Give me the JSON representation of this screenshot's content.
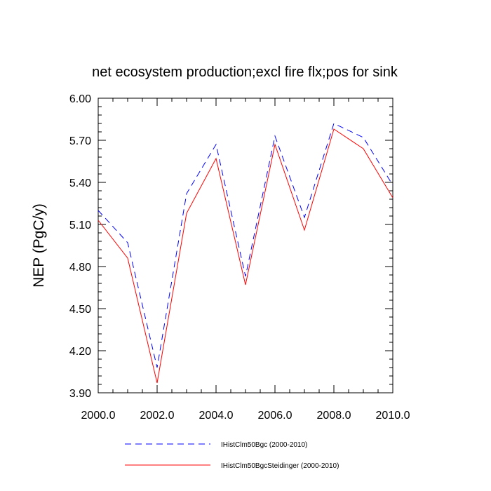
{
  "chart_data": {
    "type": "line",
    "title": "net ecosystem production;excl fire flx;pos for sink",
    "ylabel": "NEP  (PgC/y)",
    "xlabel": "",
    "xlim": [
      2000,
      2010
    ],
    "ylim": [
      3.9,
      6.0
    ],
    "xticks": [
      2000,
      2002,
      2004,
      2006,
      2008,
      2010
    ],
    "xtick_labels": [
      "2000.0",
      "2002.0",
      "2004.0",
      "2006.0",
      "2008.0",
      "2010.0"
    ],
    "yticks": [
      3.9,
      4.2,
      4.5,
      4.8,
      5.1,
      5.4,
      5.7,
      6.0
    ],
    "ytick_labels": [
      "3.90",
      "4.20",
      "4.50",
      "4.80",
      "5.10",
      "5.40",
      "5.70",
      "6.00"
    ],
    "x": [
      2000,
      2001,
      2002,
      2003,
      2004,
      2005,
      2006,
      2007,
      2008,
      2009,
      2010
    ],
    "series": [
      {
        "name": "IHistClm50Bgc (2000-2010)",
        "color": "#0000ff",
        "style": "dashed",
        "values": [
          5.2,
          4.97,
          4.08,
          5.32,
          5.67,
          4.73,
          5.73,
          5.15,
          5.82,
          5.72,
          5.38
        ]
      },
      {
        "name": "IHistClm50BgcSteidinger (2000-2010)",
        "color": "#ff0000",
        "style": "solid",
        "values": [
          5.13,
          4.86,
          3.97,
          5.18,
          5.57,
          4.67,
          5.67,
          5.06,
          5.78,
          5.64,
          5.29
        ]
      }
    ],
    "grid": false,
    "legend_position": "bottom"
  }
}
